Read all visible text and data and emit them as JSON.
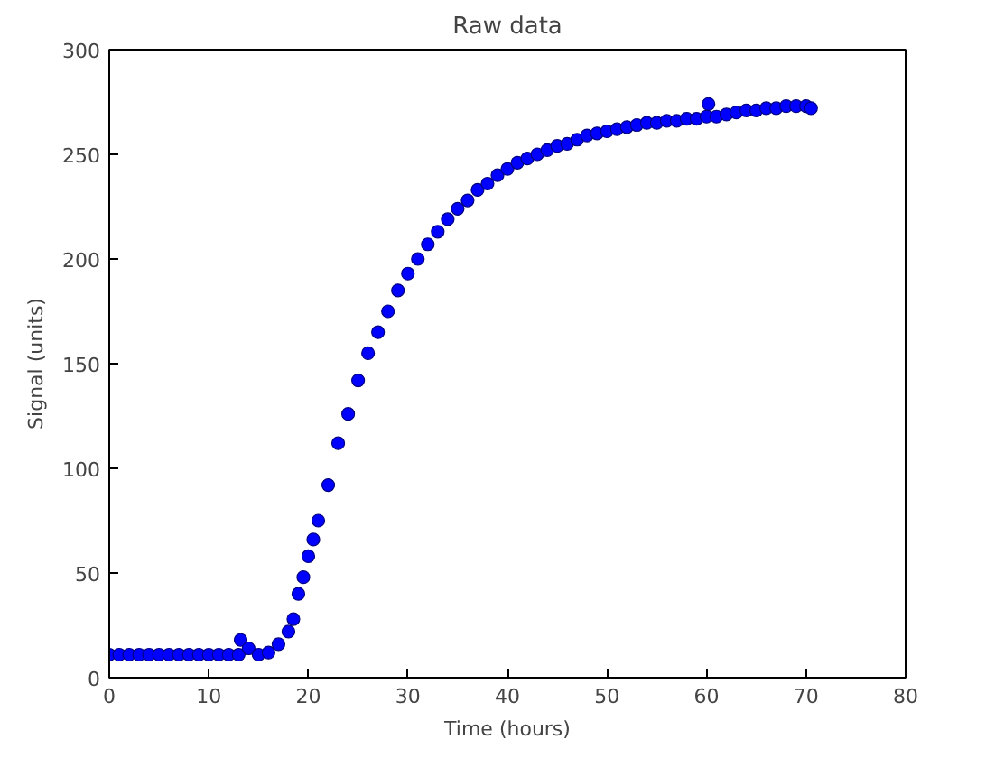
{
  "chart_data": {
    "type": "scatter",
    "title": "Raw data",
    "xlabel": "Time (hours)",
    "ylabel": "Signal (units)",
    "xlim": [
      0,
      80
    ],
    "ylim": [
      0,
      300
    ],
    "xticks": [
      0,
      10,
      20,
      30,
      40,
      50,
      60,
      70,
      80
    ],
    "yticks": [
      0,
      50,
      100,
      150,
      200,
      250,
      300
    ],
    "grid": false,
    "marker": "circle",
    "series": [
      {
        "color": "#0000ff",
        "x": [
          0,
          1,
          2,
          3,
          4,
          5,
          6,
          7,
          8,
          9,
          10,
          11,
          12,
          13,
          13.2,
          14,
          15,
          16,
          17,
          18,
          18.5,
          19,
          19.5,
          20,
          20.5,
          21,
          22,
          23,
          24,
          25,
          26,
          27,
          28,
          29,
          30,
          31,
          32,
          33,
          34,
          35,
          36,
          37,
          38,
          39,
          40,
          41,
          42,
          43,
          44,
          45,
          46,
          47,
          48,
          49,
          50,
          51,
          52,
          53,
          54,
          55,
          56,
          57,
          58,
          59,
          60,
          60.2,
          61,
          62,
          63,
          64,
          65,
          66,
          67,
          68,
          69,
          70,
          70.5
        ],
        "values": [
          11,
          11,
          11,
          11,
          11,
          11,
          11,
          11,
          11,
          11,
          11,
          11,
          11,
          11,
          18,
          14,
          11,
          12,
          16,
          22,
          28,
          40,
          48,
          58,
          66,
          75,
          92,
          112,
          126,
          142,
          155,
          165,
          175,
          185,
          193,
          200,
          207,
          213,
          219,
          224,
          228,
          233,
          236,
          240,
          243,
          246,
          248,
          250,
          252,
          254,
          255,
          257,
          259,
          260,
          261,
          262,
          263,
          264,
          265,
          265,
          266,
          266,
          267,
          267,
          268,
          274,
          268,
          269,
          270,
          271,
          271,
          272,
          272,
          273,
          273,
          273,
          272
        ]
      }
    ]
  }
}
